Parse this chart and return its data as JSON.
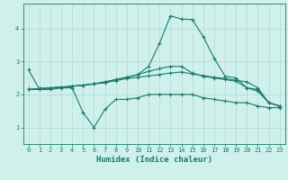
{
  "xlabel": "Humidex (Indice chaleur)",
  "x": [
    0,
    1,
    2,
    3,
    4,
    5,
    6,
    7,
    8,
    9,
    10,
    11,
    12,
    13,
    14,
    15,
    16,
    17,
    18,
    19,
    20,
    21,
    22,
    23
  ],
  "lines": [
    [
      2.75,
      2.15,
      2.15,
      2.2,
      2.2,
      1.45,
      1.0,
      1.55,
      1.85,
      1.85,
      1.9,
      2.0,
      2.0,
      2.0,
      2.0,
      2.0,
      1.9,
      1.85,
      1.8,
      1.75,
      1.75,
      1.65,
      1.6,
      1.6
    ],
    [
      2.15,
      2.15,
      2.2,
      2.22,
      2.25,
      2.28,
      2.32,
      2.35,
      2.42,
      2.48,
      2.52,
      2.56,
      2.6,
      2.65,
      2.68,
      2.62,
      2.57,
      2.52,
      2.48,
      2.43,
      2.38,
      2.2,
      1.75,
      1.65
    ],
    [
      2.15,
      2.18,
      2.2,
      2.22,
      2.25,
      2.28,
      2.32,
      2.38,
      2.45,
      2.52,
      2.6,
      2.85,
      3.55,
      4.38,
      4.28,
      4.27,
      3.75,
      3.1,
      2.55,
      2.5,
      2.2,
      2.15,
      1.75,
      1.65
    ],
    [
      2.15,
      2.18,
      2.2,
      2.22,
      2.25,
      2.28,
      2.32,
      2.38,
      2.45,
      2.52,
      2.6,
      2.7,
      2.78,
      2.85,
      2.85,
      2.65,
      2.55,
      2.5,
      2.45,
      2.4,
      2.2,
      2.1,
      1.75,
      1.65
    ]
  ],
  "line_color": "#1a7a6e",
  "bg_color": "#cff0eb",
  "grid_color": "#aaddd7",
  "ylim": [
    0.5,
    4.75
  ],
  "xlim": [
    -0.5,
    23.5
  ],
  "yticks": [
    1,
    2,
    3,
    4
  ],
  "xticks": [
    0,
    1,
    2,
    3,
    4,
    5,
    6,
    7,
    8,
    9,
    10,
    11,
    12,
    13,
    14,
    15,
    16,
    17,
    18,
    19,
    20,
    21,
    22,
    23
  ]
}
